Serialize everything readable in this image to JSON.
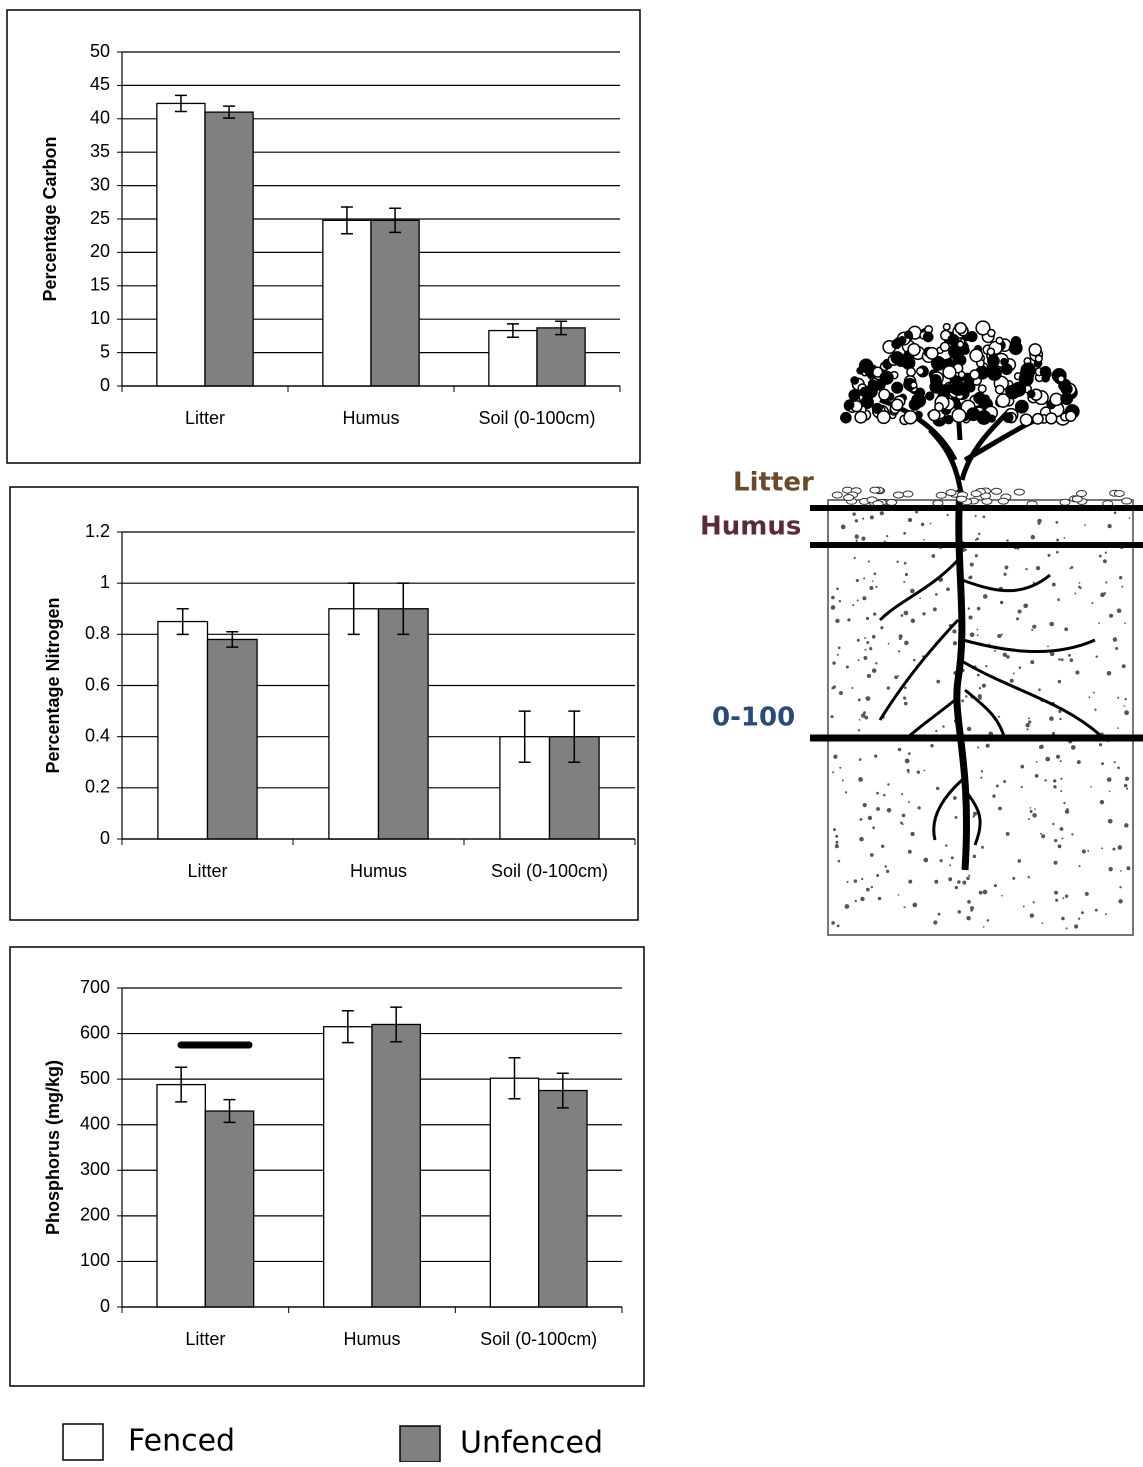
{
  "chart_data": [
    {
      "type": "bar",
      "y_label": "Percentage Carbon",
      "categories": [
        "Litter",
        "Humus",
        "Soil (0-100cm)"
      ],
      "series": [
        {
          "name": "Fenced",
          "color": "#ffffff",
          "values": [
            42.3,
            24.8,
            8.3
          ],
          "errors": [
            1.2,
            2,
            1
          ]
        },
        {
          "name": "Unfenced",
          "color": "#808080",
          "values": [
            41,
            24.8,
            8.7
          ],
          "errors": [
            0.9,
            1.8,
            1
          ]
        }
      ],
      "ylim": [
        0,
        50
      ],
      "yticks": [
        0,
        5,
        10,
        15,
        20,
        25,
        30,
        35,
        40,
        45,
        50
      ],
      "grid": true
    },
    {
      "type": "bar",
      "y_label": "Percentage Nitrogen",
      "categories": [
        "Litter",
        "Humus",
        "Soil (0-100cm)"
      ],
      "series": [
        {
          "color": "#ffffff",
          "values": [
            0.85,
            0.9,
            0.4
          ],
          "errors": [
            0.05,
            0.1,
            0.1
          ]
        },
        {
          "color": "#808080",
          "values": [
            0.78,
            0.9,
            0.4
          ],
          "errors": [
            0.03,
            0.1,
            0.1
          ]
        }
      ],
      "ylim": [
        0,
        1.2
      ],
      "yticks": [
        0,
        0.2,
        0.4,
        0.6,
        0.8,
        1,
        1.2
      ],
      "grid": true
    },
    {
      "type": "bar",
      "y_label": "Phosphorus (mg/kg)",
      "categories": [
        "Litter",
        "Humus",
        "Soil (0-100cm)"
      ],
      "series": [
        {
          "color": "#ffffff",
          "values": [
            488,
            615,
            502
          ],
          "errors": [
            38,
            35,
            45
          ]
        },
        {
          "color": "#808080",
          "values": [
            430,
            620,
            475
          ],
          "errors": [
            25,
            38,
            38
          ]
        }
      ],
      "ylim": [
        0,
        700
      ],
      "yticks": [
        0,
        100,
        200,
        300,
        400,
        500,
        600,
        700
      ],
      "grid": true
    }
  ],
  "diagram": {
    "labels": [
      "Litter",
      "Humus",
      "0-100"
    ]
  }
}
